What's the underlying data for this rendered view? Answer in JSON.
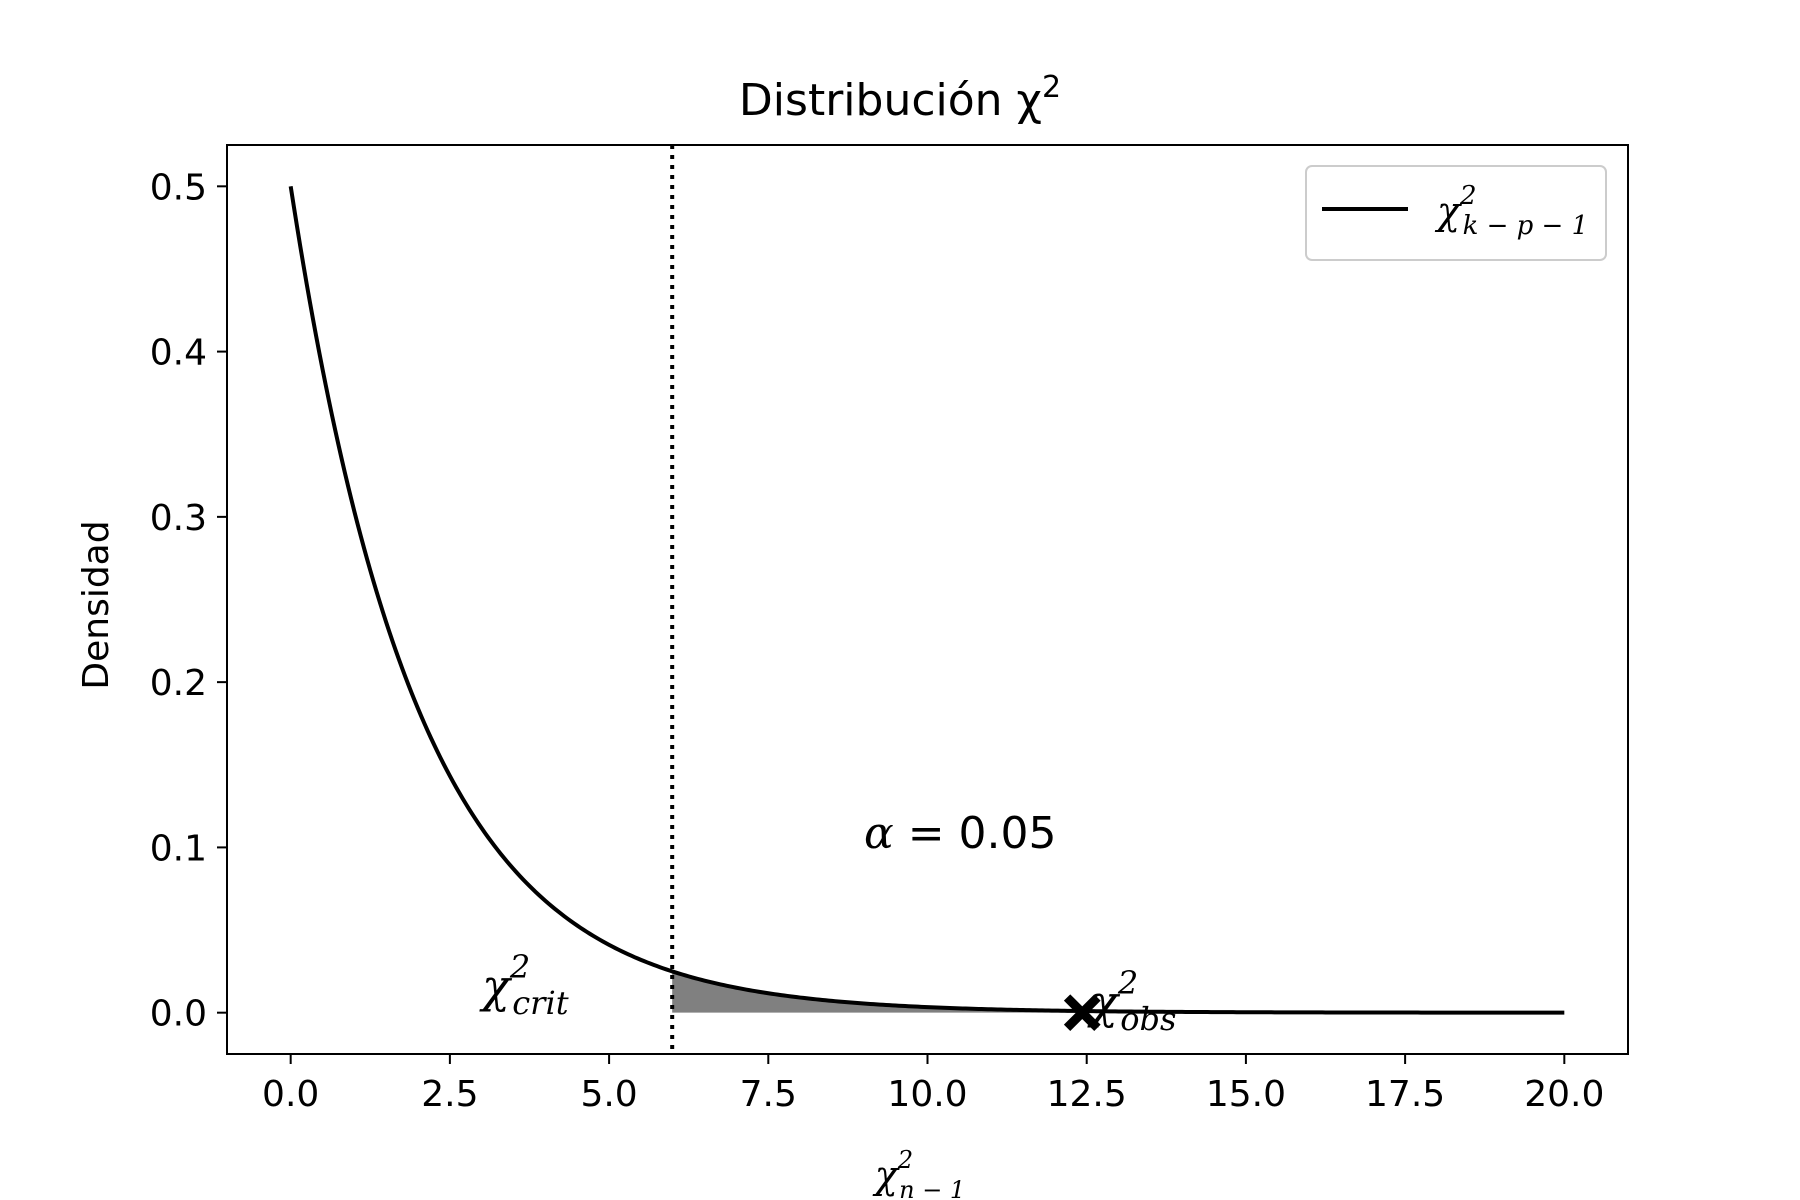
{
  "chart_data": {
    "type": "line",
    "title": "Distribución χ²",
    "title_parts": {
      "base": "Distribución χ",
      "sup": "2"
    },
    "xlabel_parts": {
      "base": "χ",
      "sup": "2",
      "sub": "n − 1"
    },
    "ylabel": "Densidad",
    "xlim": [
      -1.0,
      21.0
    ],
    "ylim": [
      -0.025,
      0.525
    ],
    "x_ticks": [
      0.0,
      2.5,
      5.0,
      7.5,
      10.0,
      12.5,
      15.0,
      17.5,
      20.0
    ],
    "x_tick_labels": [
      "0.0",
      "2.5",
      "5.0",
      "7.5",
      "10.0",
      "12.5",
      "15.0",
      "17.5",
      "20.0"
    ],
    "y_ticks": [
      0.0,
      0.1,
      0.2,
      0.3,
      0.4,
      0.5
    ],
    "y_tick_labels": [
      "0.0",
      "0.1",
      "0.2",
      "0.3",
      "0.4",
      "0.5"
    ],
    "series": [
      {
        "name": "χ²(k−p−1)",
        "distribution": "chi-square",
        "df": 2,
        "x_range": [
          0.0,
          20.0
        ],
        "color": "#000000"
      }
    ],
    "legend": {
      "position": "top-right",
      "label_parts": {
        "base": "χ",
        "sup": "2",
        "sub": "k − p − 1"
      }
    },
    "critical_value": 5.991,
    "observed_value": 12.43,
    "shade": {
      "from": 5.991,
      "to": 20.0,
      "color": "#808080"
    },
    "annotations": {
      "alpha": {
        "symbol": "α",
        "rest": " = 0.05"
      },
      "crit_label": {
        "base": "χ",
        "sup": "2",
        "sub": "crit"
      },
      "obs_label": {
        "base": "χ",
        "sup": "2",
        "sub": "obs"
      }
    }
  }
}
